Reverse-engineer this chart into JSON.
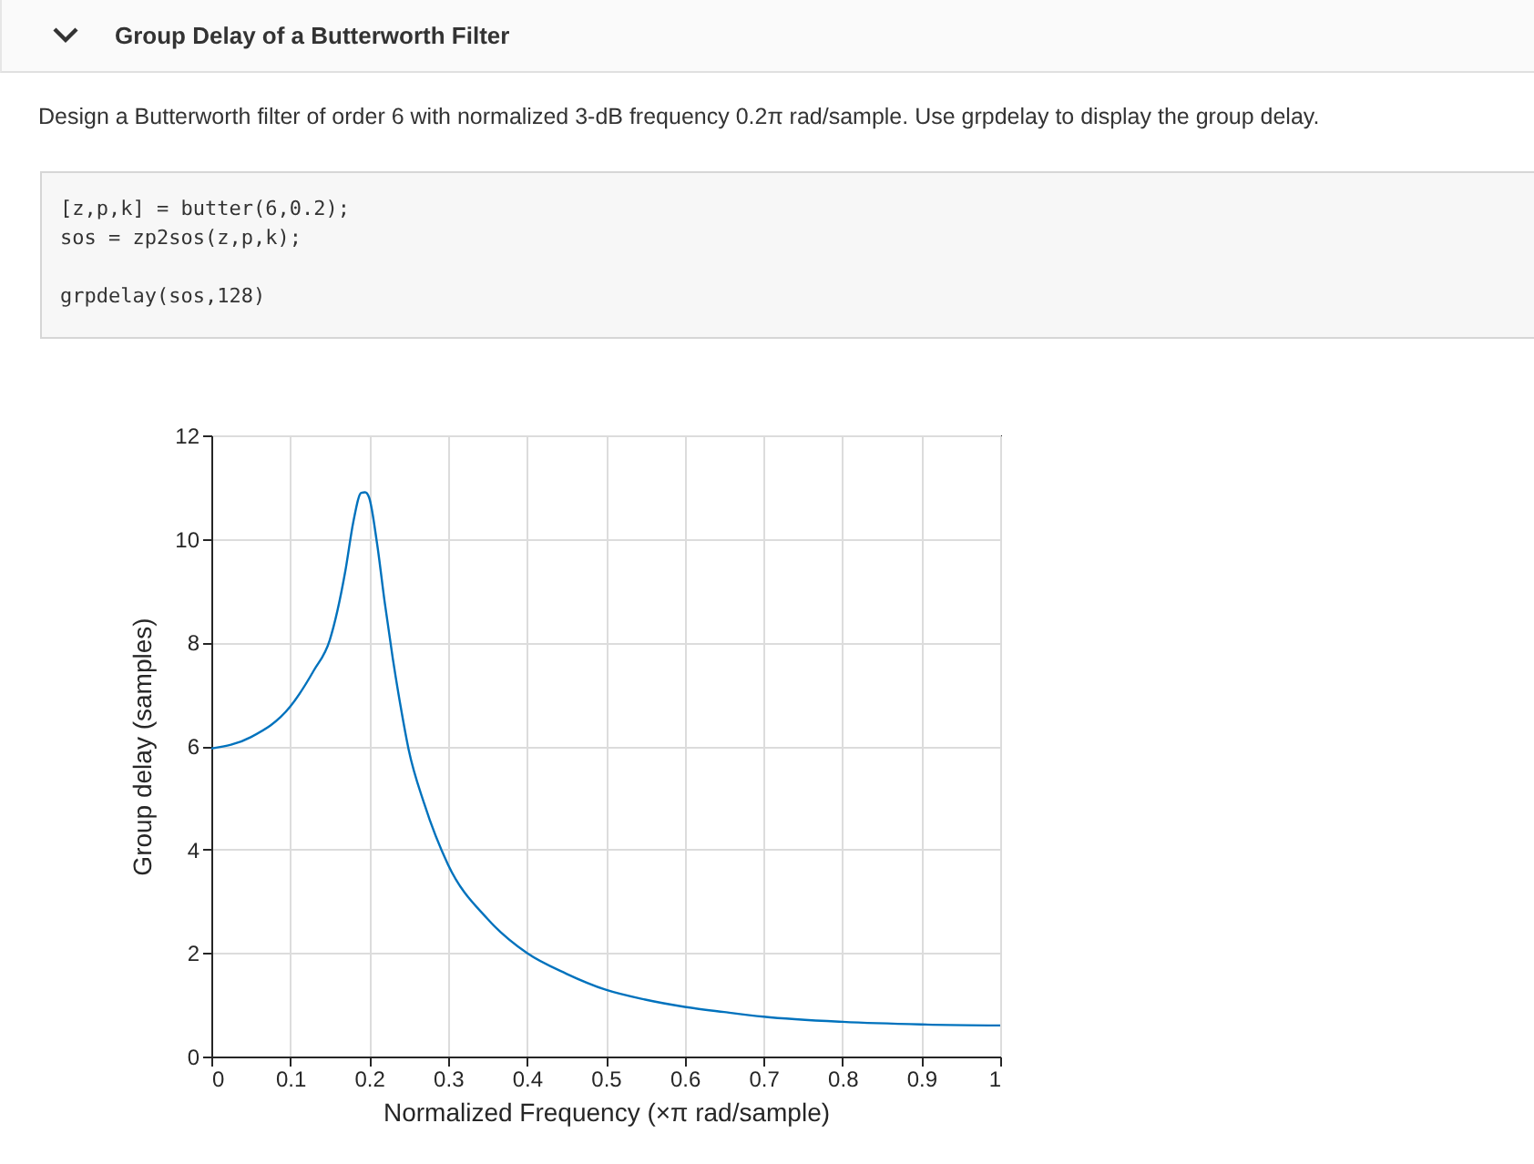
{
  "chart_data": {
    "type": "line",
    "title": "Group Delay of a Butterworth Filter",
    "annotations": [
      "Design a Butterworth filter of order 6 with normalized 3-dB frequency 0.2π rad/sample. Use grpdelay to display the group delay.",
      "[z,p,k] = butter(6,0.2);",
      "sos = zp2sos(z,p,k);",
      "grpdelay(sos,128)"
    ],
    "xlabel": "Normalized Frequency (×π rad/sample)",
    "ylabel": "Group delay (samples)",
    "x": [
      0,
      0.05,
      0.1,
      0.13,
      0.15,
      0.17,
      0.18,
      0.19,
      0.195,
      0.2,
      0.21,
      0.22,
      0.23,
      0.24,
      0.25,
      0.27,
      0.3,
      0.35,
      0.4,
      0.45,
      0.5,
      0.55,
      0.6,
      0.65,
      0.7,
      0.8,
      0.9,
      1.0
    ],
    "series": [
      {
        "color": "#0072bd",
        "values": [
          5.95,
          6.17,
          6.76,
          7.46,
          8.04,
          9.39,
          10.33,
          10.89,
          10.9,
          10.8,
          9.92,
          8.75,
          7.69,
          6.76,
          5.94,
          4.88,
          3.71,
          2.66,
          2.0,
          1.6,
          1.29,
          1.1,
          0.96,
          0.86,
          0.77,
          0.67,
          0.62,
          0.6
        ]
      }
    ],
    "xlim": [
      0,
      1
    ],
    "xticks": [
      0,
      0.1,
      0.2,
      0.3,
      0.4,
      0.5,
      0.6,
      0.7,
      0.8,
      0.9,
      1
    ],
    "ylim": [
      0,
      12
    ],
    "yticks": [
      0,
      2,
      4,
      6,
      8,
      10,
      12
    ],
    "grid": true
  }
}
